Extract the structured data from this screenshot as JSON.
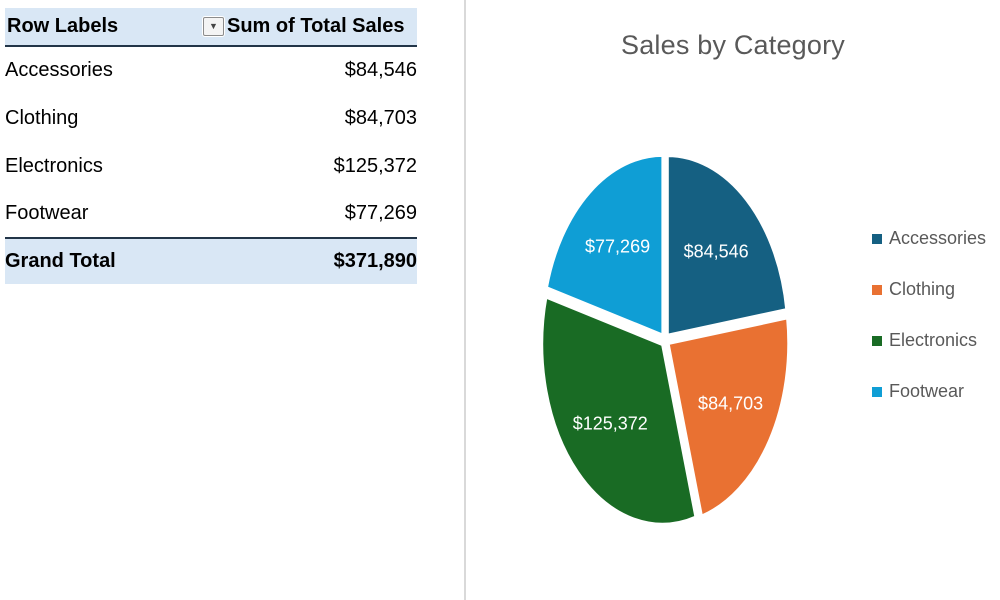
{
  "table": {
    "header": {
      "row_labels": "Row Labels",
      "value_col": "Sum of Total Sales"
    },
    "rows": [
      {
        "label": "Accessories",
        "value": "$84,546"
      },
      {
        "label": "Clothing",
        "value": "$84,703"
      },
      {
        "label": "Electronics",
        "value": "$125,372"
      },
      {
        "label": "Footwear",
        "value": "$77,269"
      }
    ],
    "grand_total": {
      "label": "Grand Total",
      "value": "$371,890"
    }
  },
  "chart_data": {
    "type": "pie",
    "title": "Sales by Category",
    "categories": [
      "Accessories",
      "Clothing",
      "Electronics",
      "Footwear"
    ],
    "values": [
      84546,
      84703,
      125372,
      77269
    ],
    "labels": [
      "$84,546",
      "$84,703",
      "$125,372",
      "$77,269"
    ],
    "colors": [
      "#156082",
      "#E97132",
      "#196B24",
      "#0F9ED5"
    ],
    "total": 371890,
    "start_angle_deg": 0,
    "direction": "clockwise",
    "legend_position": "right",
    "label_color": "#ffffff",
    "title_color": "#595959"
  }
}
